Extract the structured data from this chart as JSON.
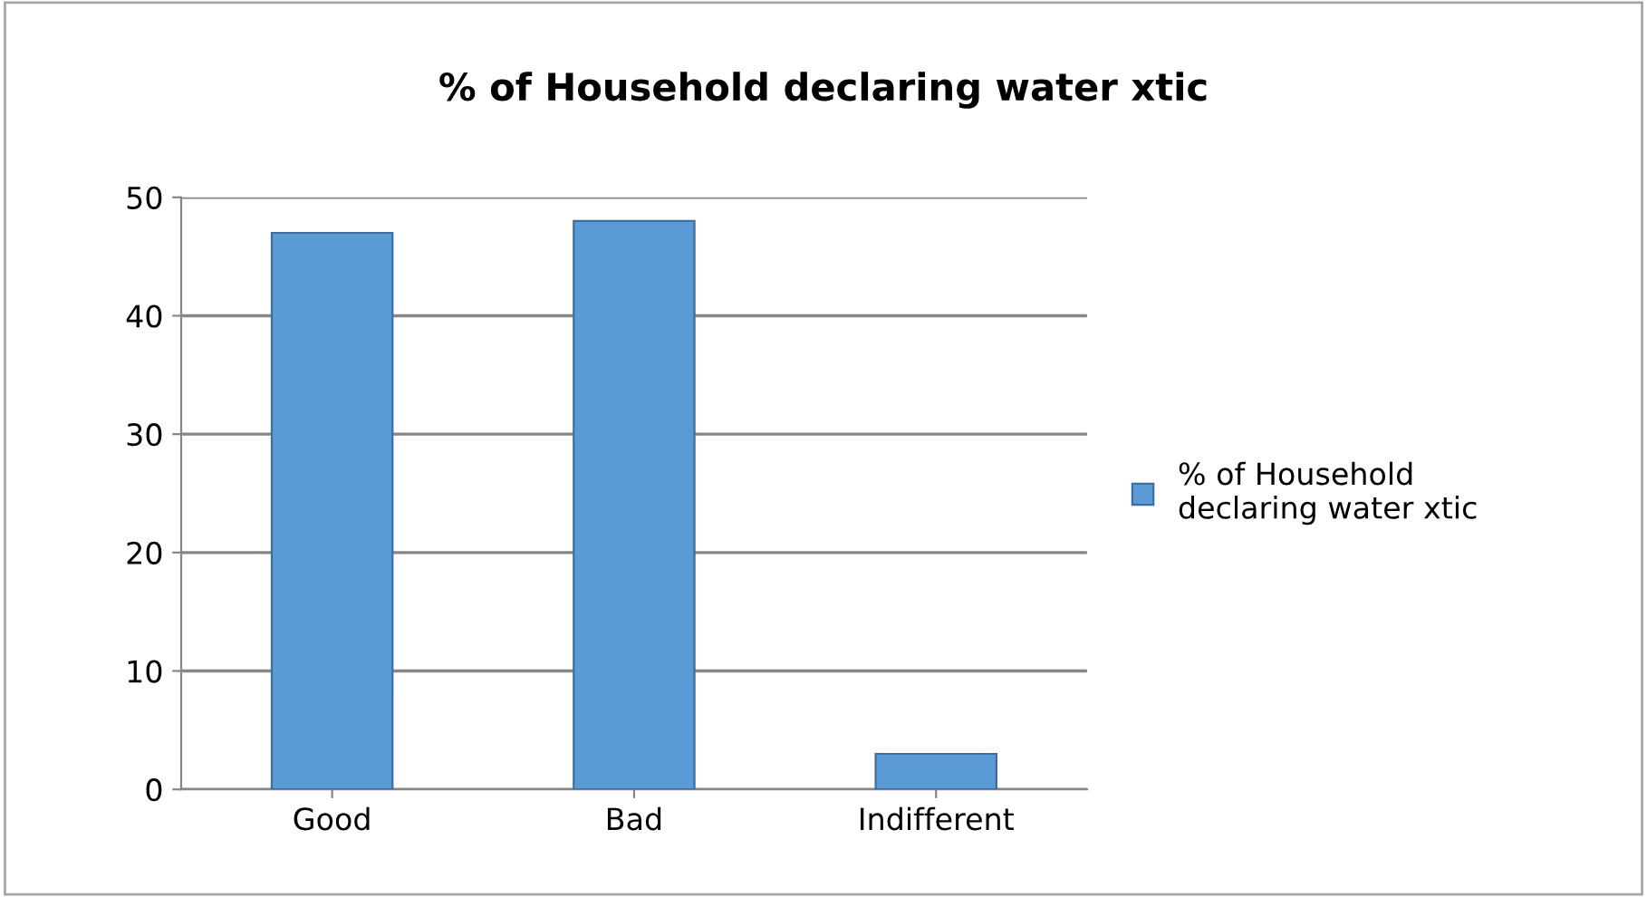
{
  "chart_data": {
    "type": "bar",
    "title": "% of Household declaring water xtic",
    "categories": [
      "Good",
      "Bad",
      "Indifferent"
    ],
    "series": [
      {
        "name": "% of Household declaring water xtic",
        "color": "#5b9bd5",
        "values": [
          47,
          48,
          3
        ]
      }
    ],
    "ylim": [
      0,
      50
    ],
    "yticks": [
      0,
      10,
      20,
      30,
      40,
      50
    ],
    "grid": "y",
    "legend": "right"
  }
}
